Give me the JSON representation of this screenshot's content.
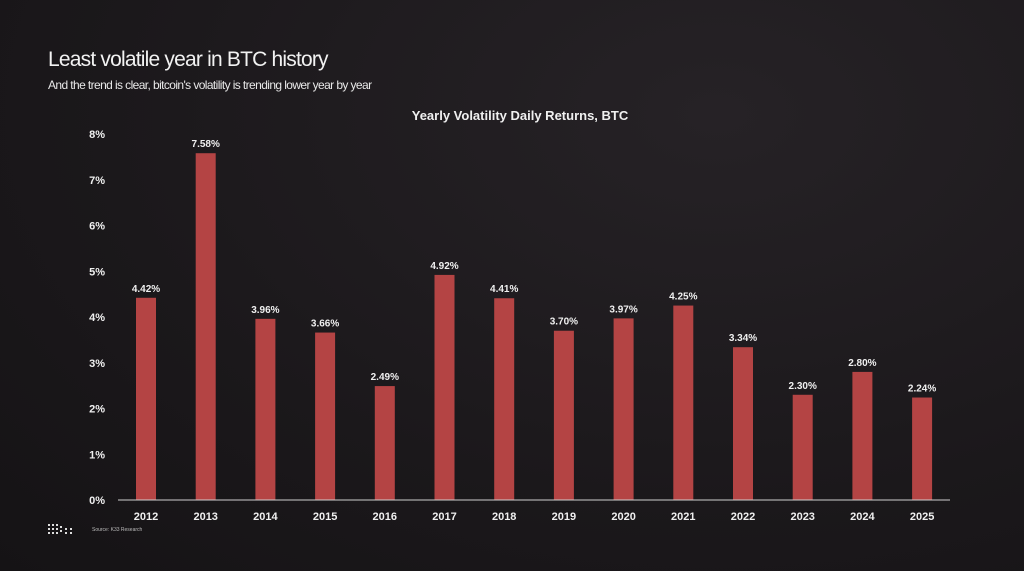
{
  "header": {
    "title": "Least volatile year in BTC history",
    "subtitle": "And the trend is clear, bitcoin's volatility is trending lower year by year"
  },
  "footer": {
    "source": "Source: K33 Research",
    "logo_text": "K33"
  },
  "colors": {
    "bar": "#b44444",
    "background": "#1b181b",
    "axis": "#cfcfcf"
  },
  "chart_data": {
    "type": "bar",
    "title": "Yearly Volatility Daily Returns, BTC",
    "xlabel": "",
    "ylabel": "",
    "categories": [
      "2012",
      "2013",
      "2014",
      "2015",
      "2016",
      "2017",
      "2018",
      "2019",
      "2020",
      "2021",
      "2022",
      "2023",
      "2024",
      "2025"
    ],
    "values": [
      4.42,
      7.58,
      3.96,
      3.66,
      2.49,
      4.92,
      4.41,
      3.7,
      3.97,
      4.25,
      3.34,
      2.3,
      2.8,
      2.24
    ],
    "data_labels": [
      "4.42%",
      "7.58%",
      "3.96%",
      "3.66%",
      "2.49%",
      "4.92%",
      "4.41%",
      "3.70%",
      "3.97%",
      "4.25%",
      "3.34%",
      "2.30%",
      "2.80%",
      "2.24%"
    ],
    "ylim": [
      0,
      8
    ],
    "yticks": [
      "0%",
      "1%",
      "2%",
      "3%",
      "4%",
      "5%",
      "6%",
      "7%",
      "8%"
    ],
    "grid": false,
    "legend": "none"
  }
}
